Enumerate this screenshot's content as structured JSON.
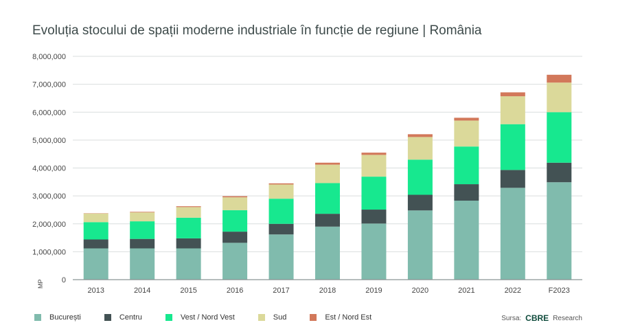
{
  "chart_data": {
    "type": "bar",
    "stacked": true,
    "title": "Evoluția stocului de spații moderne industriale în funcție de regiune | România",
    "ylabel": "MP",
    "xlabel": "",
    "ylim": [
      0,
      8000000
    ],
    "yticks": [
      0,
      1000000,
      2000000,
      3000000,
      4000000,
      5000000,
      6000000,
      7000000,
      8000000
    ],
    "ytick_labels": [
      "0",
      "1,000,000",
      "2,000,000",
      "3,000,000",
      "4,000,000",
      "5,000,000",
      "6,000,000",
      "7,000,000",
      "8,000,000"
    ],
    "grid": true,
    "legend_position": "bottom-left",
    "categories": [
      "2013",
      "2014",
      "2015",
      "2016",
      "2017",
      "2018",
      "2019",
      "2020",
      "2021",
      "2022",
      "F2023"
    ],
    "series": [
      {
        "name": "București",
        "color": "#80bbad",
        "values": [
          1120000,
          1120000,
          1120000,
          1320000,
          1620000,
          1900000,
          2010000,
          2480000,
          2830000,
          3290000,
          3490000
        ]
      },
      {
        "name": "Centru",
        "color": "#435254",
        "values": [
          320000,
          340000,
          360000,
          400000,
          380000,
          460000,
          500000,
          560000,
          590000,
          640000,
          700000
        ]
      },
      {
        "name": "Vest / Nord Vest",
        "color": "#17e88f",
        "values": [
          620000,
          630000,
          740000,
          770000,
          900000,
          1100000,
          1180000,
          1260000,
          1350000,
          1640000,
          1810000
        ]
      },
      {
        "name": "Sud",
        "color": "#dbd99a",
        "values": [
          310000,
          320000,
          380000,
          460000,
          510000,
          660000,
          780000,
          810000,
          930000,
          1000000,
          1060000
        ]
      },
      {
        "name": "Est / Nord Est",
        "color": "#d2785a",
        "values": [
          10000,
          20000,
          30000,
          40000,
          40000,
          70000,
          80000,
          100000,
          100000,
          140000,
          280000
        ]
      }
    ]
  },
  "source": {
    "label": "Sursa:",
    "logo": "CBRE",
    "suffix": "Research"
  }
}
